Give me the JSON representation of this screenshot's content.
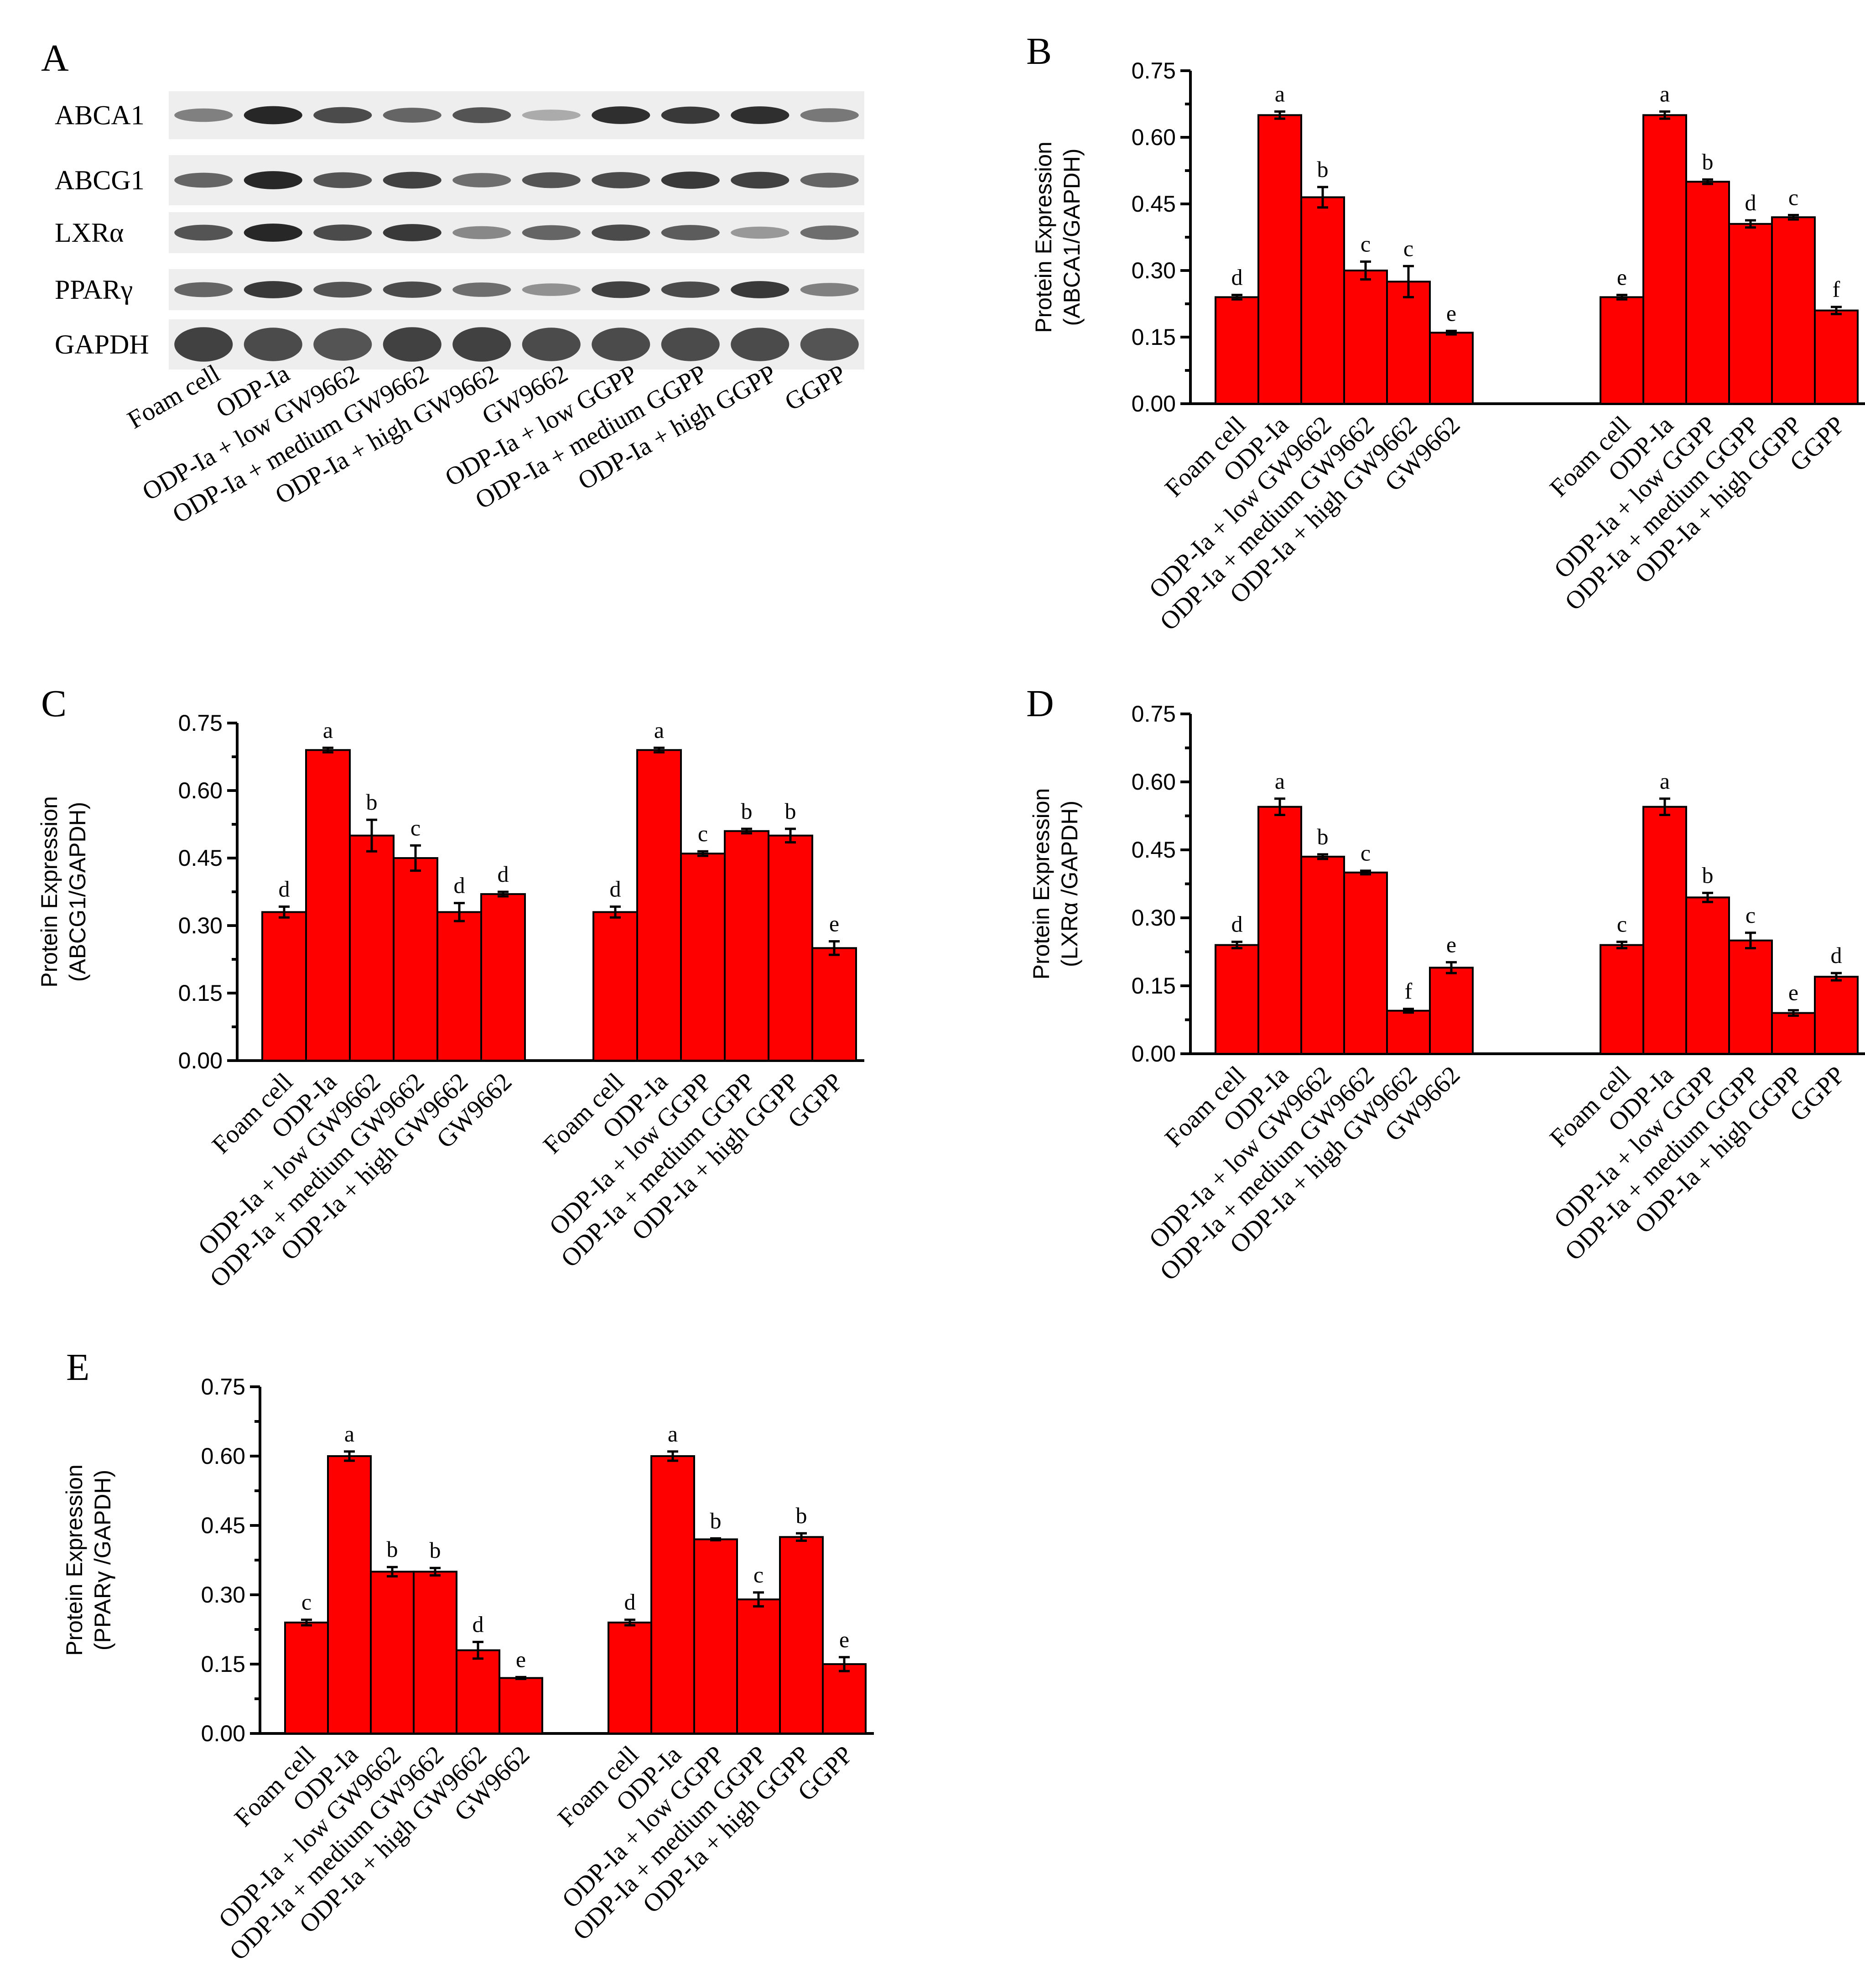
{
  "colors": {
    "bar": "#ff0000",
    "axis": "#000000",
    "blot_bg": "#eeeeee",
    "band": "#1e1e1e"
  },
  "panel_a": {
    "letter": "A",
    "proteins": [
      "ABCA1",
      "ABCG1",
      "LXRα",
      "PPARγ",
      "GAPDH"
    ],
    "lanes": [
      "Foam cell",
      "ODP-Ia",
      "ODP-Ia + low GW9662",
      "ODP-Ia + medium GW9662",
      "ODP-Ia + high GW9662",
      "GW9662",
      "ODP-Ia + low GGPP",
      "ODP-Ia + medium GGPP",
      "ODP-Ia + high GGPP",
      "GGPP"
    ],
    "band_intensity": [
      [
        0.45,
        0.95,
        0.75,
        0.6,
        0.7,
        0.2,
        0.9,
        0.85,
        0.9,
        0.5
      ],
      [
        0.6,
        0.95,
        0.7,
        0.8,
        0.55,
        0.7,
        0.75,
        0.85,
        0.8,
        0.6
      ],
      [
        0.7,
        0.95,
        0.75,
        0.85,
        0.4,
        0.6,
        0.75,
        0.65,
        0.3,
        0.55
      ],
      [
        0.6,
        0.85,
        0.7,
        0.75,
        0.55,
        0.35,
        0.8,
        0.75,
        0.85,
        0.45
      ],
      [
        0.8,
        0.75,
        0.7,
        0.8,
        0.8,
        0.75,
        0.75,
        0.75,
        0.75,
        0.7
      ]
    ]
  },
  "chart_data": [
    {
      "type": "bar",
      "panel": "B",
      "ylabel_line1": "Protein Expression",
      "ylabel_line2": "(ABCA1/GAPDH)",
      "ylim": [
        0,
        0.75
      ],
      "yticks": [
        "0.00",
        "0.15",
        "0.30",
        "0.45",
        "0.60",
        "0.75"
      ],
      "groups": [
        {
          "categories": [
            "Foam cell",
            "ODP-Ia",
            "ODP-Ia + low GW9662",
            "ODP-Ia + medium GW9662",
            "ODP-Ia + high GW9662",
            "GW9662"
          ],
          "values": [
            0.24,
            0.65,
            0.465,
            0.3,
            0.275,
            0.16
          ],
          "errors": [
            0.005,
            0.008,
            0.023,
            0.02,
            0.035,
            0.004
          ],
          "letters": [
            "d",
            "a",
            "b",
            "c",
            "c",
            "e"
          ]
        },
        {
          "categories": [
            "Foam cell",
            "ODP-Ia",
            "ODP-Ia + low GGPP",
            "ODP-Ia + medium GGPP",
            "ODP-Ia + high GGPP",
            "GGPP"
          ],
          "values": [
            0.24,
            0.65,
            0.5,
            0.405,
            0.42,
            0.21
          ],
          "errors": [
            0.005,
            0.008,
            0.005,
            0.008,
            0.005,
            0.008
          ],
          "letters": [
            "e",
            "a",
            "b",
            "d",
            "c",
            "f"
          ]
        }
      ]
    },
    {
      "type": "bar",
      "panel": "C",
      "ylabel_line1": "Protein Expression",
      "ylabel_line2": "(ABCG1/GAPDH)",
      "ylim": [
        0,
        0.75
      ],
      "yticks": [
        "0.00",
        "0.15",
        "0.30",
        "0.45",
        "0.60",
        "0.75"
      ],
      "groups": [
        {
          "categories": [
            "Foam cell",
            "ODP-Ia",
            "ODP-Ia + low GW9662",
            "ODP-Ia + medium GW9662",
            "ODP-Ia + high GW9662",
            "GW9662"
          ],
          "values": [
            0.33,
            0.69,
            0.5,
            0.45,
            0.33,
            0.37
          ],
          "errors": [
            0.012,
            0.005,
            0.035,
            0.028,
            0.02,
            0.005
          ],
          "letters": [
            "d",
            "a",
            "b",
            "c",
            "d",
            "d"
          ]
        },
        {
          "categories": [
            "Foam cell",
            "ODP-Ia",
            "ODP-Ia + low GGPP",
            "ODP-Ia + medium GGPP",
            "ODP-Ia + high GGPP",
            "GGPP"
          ],
          "values": [
            0.33,
            0.69,
            0.46,
            0.51,
            0.5,
            0.25
          ],
          "errors": [
            0.012,
            0.005,
            0.005,
            0.005,
            0.015,
            0.015
          ],
          "letters": [
            "d",
            "a",
            "c",
            "b",
            "b",
            "e"
          ]
        }
      ]
    },
    {
      "type": "bar",
      "panel": "D",
      "ylabel_line1": "Protein Expression",
      "ylabel_line2": "(LXRα /GAPDH)",
      "ylim": [
        0,
        0.75
      ],
      "yticks": [
        "0.00",
        "0.15",
        "0.30",
        "0.45",
        "0.60",
        "0.75"
      ],
      "groups": [
        {
          "categories": [
            "Foam cell",
            "ODP-Ia",
            "ODP-Ia + low GW9662",
            "ODP-Ia + medium GW9662",
            "ODP-Ia + high GW9662",
            "GW9662"
          ],
          "values": [
            0.24,
            0.545,
            0.435,
            0.4,
            0.095,
            0.19
          ],
          "errors": [
            0.007,
            0.018,
            0.005,
            0.004,
            0.004,
            0.012
          ],
          "letters": [
            "d",
            "a",
            "b",
            "c",
            "f",
            "e"
          ]
        },
        {
          "categories": [
            "Foam cell",
            "ODP-Ia",
            "ODP-Ia + low GGPP",
            "ODP-Ia + medium GGPP",
            "ODP-Ia + high GGPP",
            "GGPP"
          ],
          "values": [
            0.24,
            0.545,
            0.345,
            0.25,
            0.09,
            0.17
          ],
          "errors": [
            0.007,
            0.018,
            0.01,
            0.017,
            0.006,
            0.008
          ],
          "letters": [
            "c",
            "a",
            "b",
            "c",
            "e",
            "d"
          ]
        }
      ]
    },
    {
      "type": "bar",
      "panel": "E",
      "ylabel_line1": "Protein Expression",
      "ylabel_line2": "(PPARγ /GAPDH)",
      "ylim": [
        0,
        0.75
      ],
      "yticks": [
        "0.00",
        "0.15",
        "0.30",
        "0.45",
        "0.60",
        "0.75"
      ],
      "groups": [
        {
          "categories": [
            "Foam cell",
            "ODP-Ia",
            "ODP-Ia + low GW9662",
            "ODP-Ia + medium GW9662",
            "ODP-Ia + high GW9662",
            "GW9662"
          ],
          "values": [
            0.24,
            0.6,
            0.35,
            0.35,
            0.18,
            0.12
          ],
          "errors": [
            0.006,
            0.01,
            0.01,
            0.008,
            0.018,
            0.002
          ],
          "letters": [
            "c",
            "a",
            "b",
            "b",
            "d",
            "e"
          ]
        },
        {
          "categories": [
            "Foam cell",
            "ODP-Ia",
            "ODP-Ia + low GGPP",
            "ODP-Ia + medium GGPP",
            "ODP-Ia + high GGPP",
            "GGPP"
          ],
          "values": [
            0.24,
            0.6,
            0.42,
            0.29,
            0.425,
            0.15
          ],
          "errors": [
            0.006,
            0.01,
            0.002,
            0.015,
            0.008,
            0.015
          ],
          "letters": [
            "d",
            "a",
            "b",
            "c",
            "b",
            "e"
          ]
        }
      ]
    }
  ]
}
